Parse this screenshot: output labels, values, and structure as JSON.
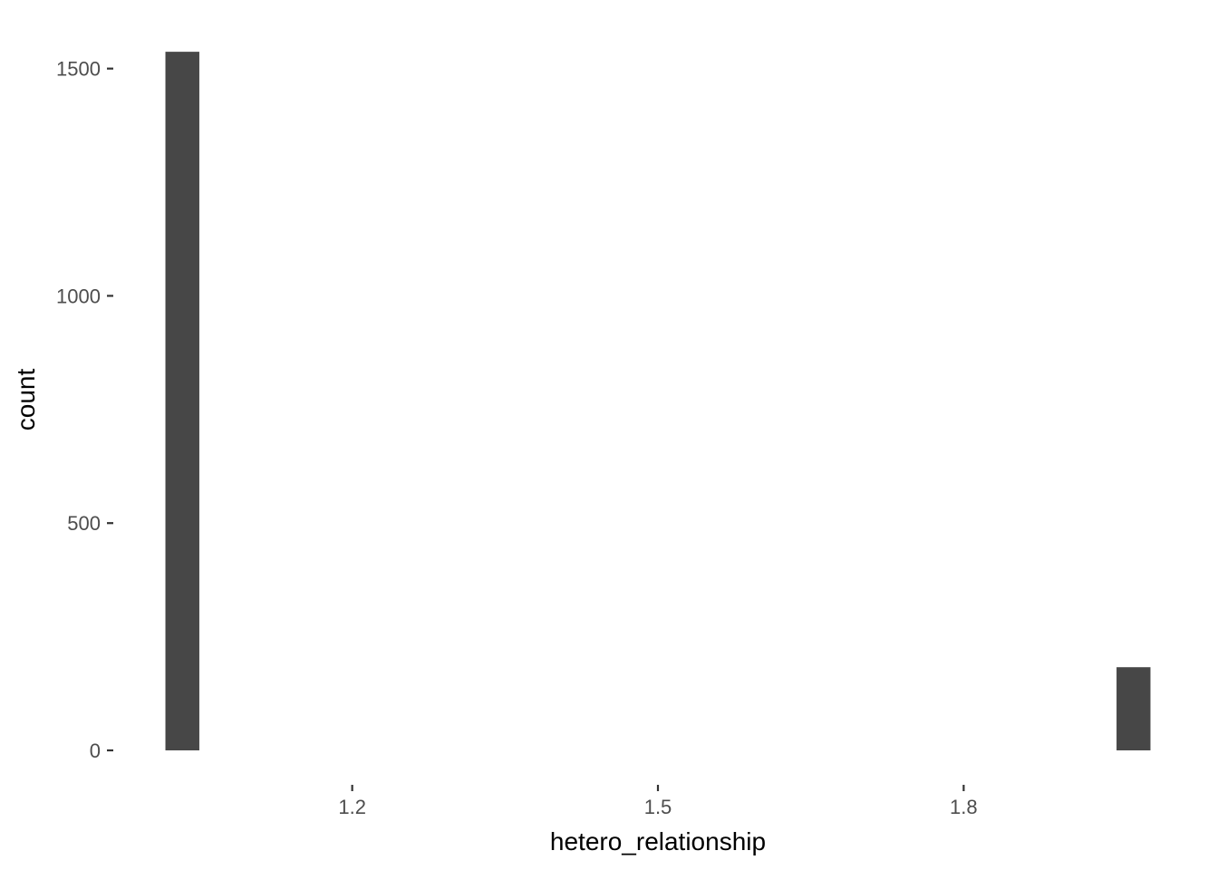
{
  "chart_data": {
    "type": "bar",
    "title": "",
    "xlabel": "hetero_relationship",
    "ylabel": "count",
    "xlim": [
      0.97,
      2.03
    ],
    "ylim": [
      0,
      1615
    ],
    "x_ticks": [
      {
        "value": 1.2,
        "label": "1.2"
      },
      {
        "value": 1.5,
        "label": "1.5"
      },
      {
        "value": 1.8,
        "label": "1.8"
      }
    ],
    "y_ticks": [
      {
        "value": 0,
        "label": "0"
      },
      {
        "value": 500,
        "label": "500"
      },
      {
        "value": 1000,
        "label": "1000"
      },
      {
        "value": 1500,
        "label": "1500"
      }
    ],
    "bins": [
      {
        "x_start": 1.0167,
        "x_end": 1.05,
        "count": 1537
      },
      {
        "x_start": 1.95,
        "x_end": 1.9833,
        "count": 183
      }
    ],
    "grid": false,
    "bar_color": "#474747"
  }
}
